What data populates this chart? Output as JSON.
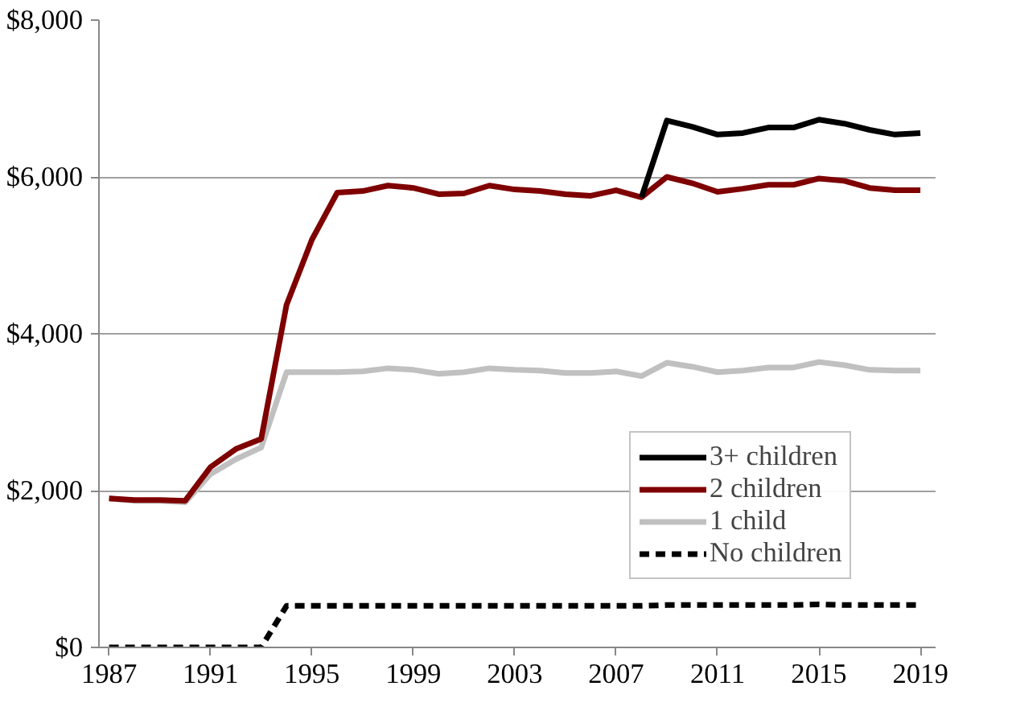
{
  "chart_data": {
    "type": "line",
    "x": [
      1987,
      1988,
      1989,
      1990,
      1991,
      1992,
      1993,
      1994,
      1995,
      1996,
      1997,
      1998,
      1999,
      2000,
      2001,
      2002,
      2003,
      2004,
      2005,
      2006,
      2007,
      2008,
      2009,
      2010,
      2011,
      2012,
      2013,
      2014,
      2015,
      2016,
      2017,
      2018,
      2019
    ],
    "series": [
      {
        "name": "3+ children",
        "color": "#000000",
        "line_style": "solid",
        "values": [
          null,
          null,
          null,
          null,
          null,
          null,
          null,
          null,
          null,
          null,
          null,
          null,
          null,
          null,
          null,
          null,
          null,
          null,
          null,
          null,
          null,
          5740,
          6720,
          6640,
          6540,
          6560,
          6630,
          6630,
          6730,
          6680,
          6600,
          6540,
          6560
        ]
      },
      {
        "name": "2 children",
        "color": "#7f0000",
        "line_style": "solid",
        "values": [
          1900,
          1880,
          1880,
          1870,
          2300,
          2530,
          2660,
          4370,
          5200,
          5800,
          5820,
          5890,
          5860,
          5780,
          5790,
          5890,
          5840,
          5820,
          5780,
          5760,
          5830,
          5740,
          6000,
          5920,
          5810,
          5850,
          5900,
          5900,
          5980,
          5950,
          5860,
          5830,
          5830
        ]
      },
      {
        "name": "1 child",
        "color": "#c0c0c0",
        "line_style": "solid",
        "values": [
          1900,
          1870,
          1870,
          1850,
          2210,
          2400,
          2550,
          3510,
          3510,
          3510,
          3520,
          3560,
          3540,
          3490,
          3510,
          3560,
          3540,
          3530,
          3500,
          3500,
          3520,
          3460,
          3630,
          3580,
          3510,
          3530,
          3570,
          3570,
          3640,
          3600,
          3540,
          3530,
          3530
        ]
      },
      {
        "name": "No children",
        "color": "#000000",
        "line_style": "dashed",
        "values": [
          0,
          0,
          0,
          0,
          0,
          0,
          0,
          530,
          530,
          530,
          530,
          530,
          530,
          530,
          530,
          530,
          530,
          530,
          530,
          530,
          530,
          530,
          540,
          540,
          540,
          540,
          540,
          540,
          550,
          540,
          540,
          540,
          540
        ]
      }
    ],
    "xlim": [
      1986.6,
      2019.6
    ],
    "xticks": [
      1987,
      1991,
      1995,
      1999,
      2003,
      2007,
      2011,
      2015,
      2019
    ],
    "ylim": [
      0,
      8000
    ],
    "yticks": [
      {
        "value": 0,
        "label": "$0"
      },
      {
        "value": 2000,
        "label": "$2,000"
      },
      {
        "value": 4000,
        "label": "$4,000"
      },
      {
        "value": 6000,
        "label": "$6,000"
      },
      {
        "value": 8000,
        "label": "$8,000"
      }
    ],
    "grid": "y",
    "legend": "bottom right",
    "marker": "none"
  }
}
